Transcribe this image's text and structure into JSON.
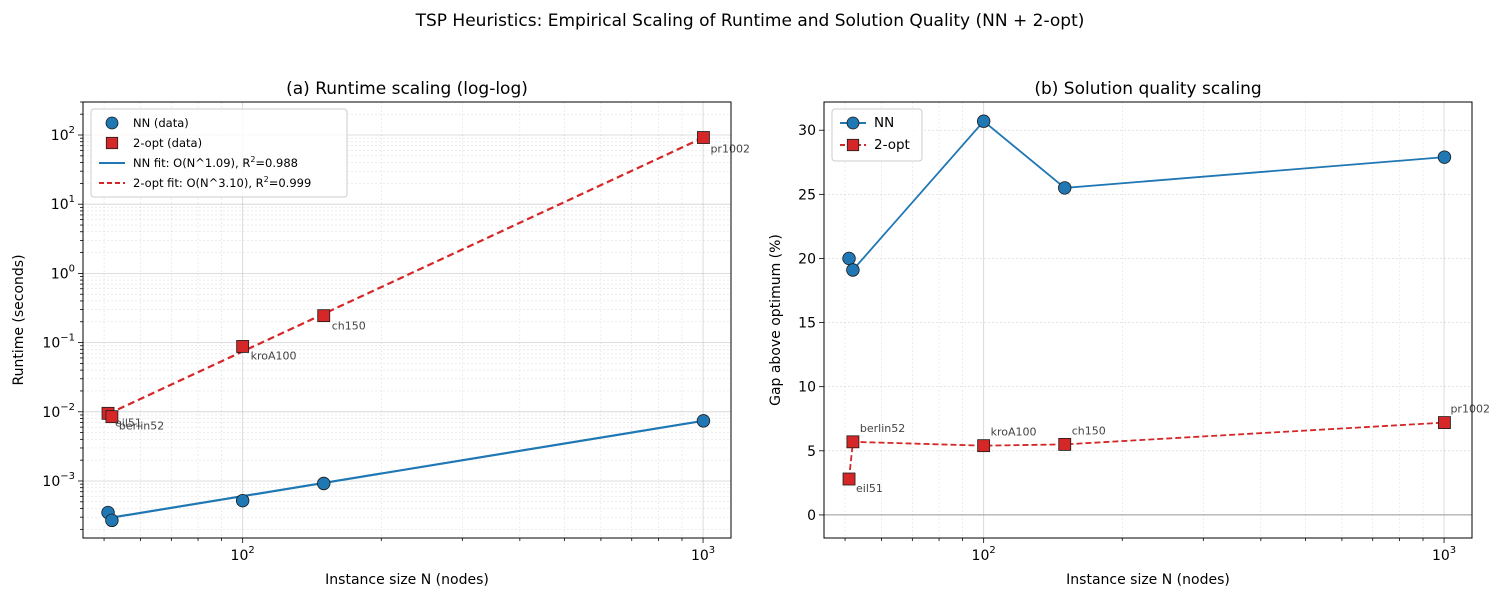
{
  "suptitle": "TSP Heuristics: Empirical Scaling of Runtime and Solution Quality (NN + 2-opt)",
  "colors": {
    "nn": "#1f77b4",
    "opt2": "#d62728",
    "grid": "#b0b0b0",
    "zero": "#999999",
    "annot": "#444444"
  },
  "chart_data": [
    {
      "type": "scatter",
      "title": "(a) Runtime scaling (log-log)",
      "xlabel": "Instance size N (nodes)",
      "ylabel": "Runtime (seconds)",
      "xscale": "log",
      "yscale": "log",
      "xlim": [
        45,
        1150
      ],
      "ylim": [
        0.00015,
        300
      ],
      "grid": true,
      "legend_position": "top-left",
      "x_ticks": [
        {
          "value": 100,
          "label": "10^2"
        },
        {
          "value": 1000,
          "label": "10^3"
        }
      ],
      "y_ticks": [
        {
          "value": 0.001,
          "label": "10^-3"
        },
        {
          "value": 0.01,
          "label": "10^-2"
        },
        {
          "value": 0.1,
          "label": "10^-1"
        },
        {
          "value": 1,
          "label": "10^0"
        },
        {
          "value": 10,
          "label": "10^1"
        },
        {
          "value": 100,
          "label": "10^2"
        }
      ],
      "instances": [
        {
          "name": "eil51",
          "n": 51
        },
        {
          "name": "berlin52",
          "n": 52
        },
        {
          "name": "kroA100",
          "n": 100
        },
        {
          "name": "ch150",
          "n": 150
        },
        {
          "name": "pr1002",
          "n": 1002
        }
      ],
      "series": [
        {
          "key": "nn",
          "name": "NN (data)",
          "marker": "circle",
          "values": [
            0.00035,
            0.00027,
            0.00052,
            0.00092,
            0.0074
          ]
        },
        {
          "key": "opt2",
          "name": "2-opt (data)",
          "marker": "square",
          "values": [
            0.0095,
            0.0085,
            0.088,
            0.245,
            92
          ]
        }
      ],
      "fits": [
        {
          "key": "nn",
          "name": "NN fit: O(N^1.09), R²=0.988",
          "exponent": 1.09,
          "r2": 0.988,
          "style": "solid",
          "x": [
            51,
            1002
          ],
          "y": [
            0.00029,
            0.0074
          ]
        },
        {
          "key": "opt2",
          "name": "2-opt fit: O(N^3.10), R²=0.999",
          "exponent": 3.1,
          "r2": 0.999,
          "style": "dashed",
          "x": [
            51,
            1002
          ],
          "y": [
            0.0093,
            92
          ]
        }
      ],
      "legend": [
        {
          "key": "nn",
          "kind": "marker",
          "marker": "circle",
          "label": "NN (data)"
        },
        {
          "key": "opt2",
          "kind": "marker",
          "marker": "square",
          "label": "2-opt (data)"
        },
        {
          "key": "nn",
          "kind": "line",
          "style": "solid",
          "label": "NN fit: O(N^1.09), R",
          "sup": "2",
          "rest": "=0.988"
        },
        {
          "key": "opt2",
          "kind": "line",
          "style": "dashed",
          "label": "2-opt fit: O(N^3.10), R",
          "sup": "2",
          "rest": "=0.999"
        }
      ]
    },
    {
      "type": "line",
      "title": "(b) Solution quality scaling",
      "xlabel": "Instance size N (nodes)",
      "ylabel": "Gap above optimum (%)",
      "xscale": "log",
      "yscale": "linear",
      "xlim": [
        45,
        1150
      ],
      "ylim": [
        -1.8,
        32.2
      ],
      "grid": true,
      "legend_position": "top-left",
      "x_ticks": [
        {
          "value": 100,
          "label": "10^2"
        },
        {
          "value": 1000,
          "label": "10^3"
        }
      ],
      "y_ticks": [
        {
          "value": 0,
          "label": "0"
        },
        {
          "value": 5,
          "label": "5"
        },
        {
          "value": 10,
          "label": "10"
        },
        {
          "value": 15,
          "label": "15"
        },
        {
          "value": 20,
          "label": "20"
        },
        {
          "value": 25,
          "label": "25"
        },
        {
          "value": 30,
          "label": "30"
        }
      ],
      "instances": [
        {
          "name": "eil51",
          "n": 51
        },
        {
          "name": "berlin52",
          "n": 52
        },
        {
          "name": "kroA100",
          "n": 100
        },
        {
          "name": "ch150",
          "n": 150
        },
        {
          "name": "pr1002",
          "n": 1002
        }
      ],
      "series": [
        {
          "key": "nn",
          "name": "NN",
          "marker": "circle",
          "style": "solid",
          "values": [
            20.0,
            19.1,
            30.7,
            25.5,
            27.9
          ]
        },
        {
          "key": "opt2",
          "name": "2-opt",
          "marker": "square",
          "style": "dashed",
          "values": [
            2.8,
            5.7,
            5.4,
            5.5,
            7.2
          ]
        }
      ],
      "legend": [
        {
          "key": "nn",
          "kind": "linemarker",
          "style": "solid",
          "marker": "circle",
          "label": "NN"
        },
        {
          "key": "opt2",
          "kind": "linemarker",
          "style": "dashed",
          "marker": "square",
          "label": "2-opt"
        }
      ]
    }
  ]
}
